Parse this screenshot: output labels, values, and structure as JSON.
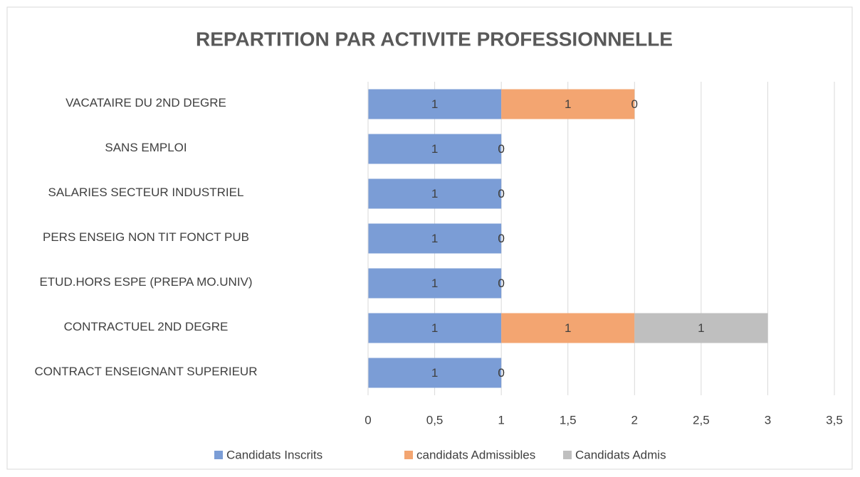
{
  "chart_data": {
    "type": "stacked_barh",
    "title": "REPARTITION PAR ACTIVITE PROFESSIONNELLE",
    "categories": [
      "VACATAIRE DU 2ND DEGRE",
      "SANS EMPLOI",
      "SALARIES SECTEUR INDUSTRIEL",
      "PERS ENSEIG NON TIT FONCT PUB",
      "ETUD.HORS ESPE (PREPA MO.UNIV)",
      "CONTRACTUEL 2ND DEGRE",
      "CONTRACT ENSEIGNANT SUPERIEUR"
    ],
    "series": [
      {
        "name": "Candidats Inscrits",
        "color": "#7b9dd6",
        "values": [
          1,
          1,
          1,
          1,
          1,
          1,
          1
        ]
      },
      {
        "name": "candidats Admissibles",
        "color": "#f3a571",
        "values": [
          1,
          0,
          0,
          0,
          0,
          1,
          0
        ]
      },
      {
        "name": "Candidats Admis",
        "color": "#bfbfbf",
        "values": [
          0,
          0,
          0,
          0,
          0,
          1,
          0
        ]
      }
    ],
    "xlim": [
      0,
      3.5
    ],
    "xticks": [
      0,
      {
        "value": 0.5,
        "label": "0,5"
      },
      1,
      {
        "value": 1.5,
        "label": "1,5"
      },
      2,
      {
        "value": 2.5,
        "label": "2,5"
      },
      3,
      {
        "value": 3.5,
        "label": "3,5"
      }
    ],
    "grid": true,
    "legend": "bottom"
  }
}
